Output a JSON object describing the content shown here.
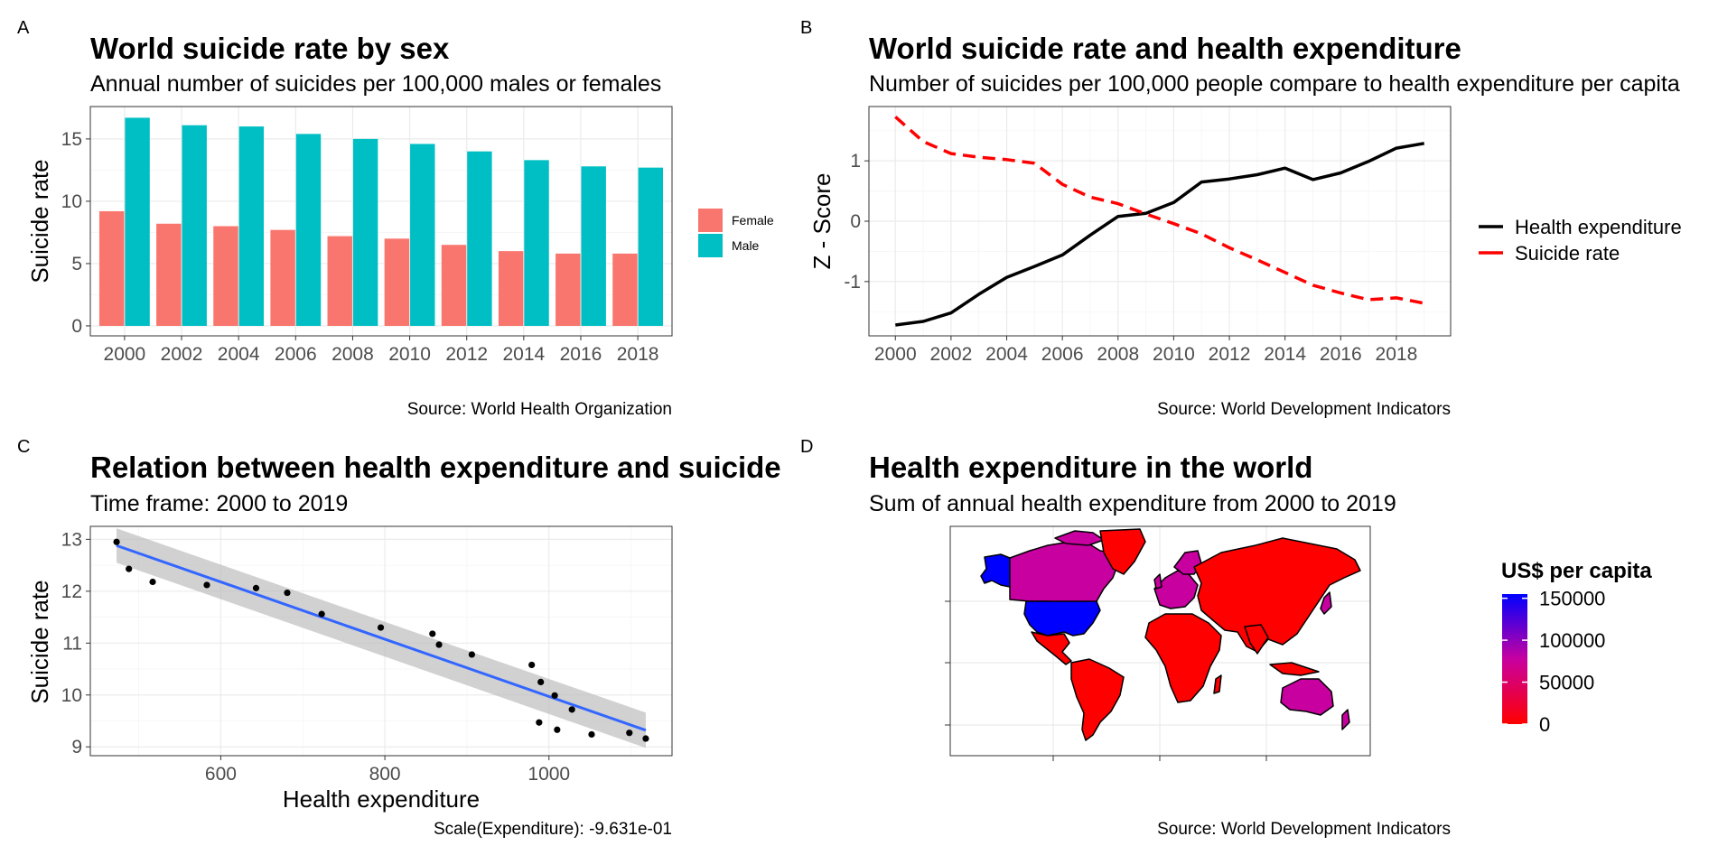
{
  "colors": {
    "female": "#F8766D",
    "male": "#00BFC4",
    "health": "#000000",
    "suicide": "#FF0000",
    "smooth": "#3366FF",
    "ribbon": "#BEBEBE",
    "grad_high": "#0000FF",
    "grad_mid": "#C800A0",
    "grad_low": "#FF0000"
  },
  "panels": [
    {
      "tag": "A",
      "title": "World suicide rate by sex",
      "subtitle": "Annual number of suicides per 100,000 males or females",
      "caption": "Source: World Health Organization"
    },
    {
      "tag": "B",
      "title": "World suicide rate and health expenditure",
      "subtitle": "Number of suicides per 100,000 people compare to health expenditure per capita",
      "caption": "Source: World Development Indicators"
    },
    {
      "tag": "C",
      "title": "Relation between health expenditure and suicide",
      "subtitle": "Time frame: 2000 to 2019",
      "caption": "Scale(Expenditure): -9.631e-01"
    },
    {
      "tag": "D",
      "title": "Health expenditure in the world",
      "subtitle": "Sum of annual health expenditure from 2000 to 2019",
      "caption": "Source: World Development Indicators"
    }
  ],
  "chart_data": [
    {
      "type": "bar",
      "title": "World suicide rate by sex",
      "subtitle": "Annual number of suicides per 100,000 males or females",
      "categories": [
        "2000",
        "2002",
        "2004",
        "2006",
        "2008",
        "2010",
        "2012",
        "2014",
        "2016",
        "2018"
      ],
      "series": [
        {
          "name": "Female",
          "values": [
            9.2,
            8.2,
            8.0,
            7.7,
            7.2,
            7.0,
            6.5,
            6.0,
            5.8,
            5.8
          ]
        },
        {
          "name": "Male",
          "values": [
            16.7,
            16.1,
            16.0,
            15.4,
            15.0,
            14.6,
            14.0,
            13.3,
            12.8,
            12.7
          ]
        }
      ],
      "xlabel": "",
      "ylabel": "Suicide rate",
      "yticks": [
        "0",
        "5",
        "10",
        "15"
      ],
      "ylim": [
        -0.8,
        17.6
      ],
      "legend": "right",
      "grid": true
    },
    {
      "type": "line",
      "title": "World suicide rate and health expenditure",
      "x": [
        2000,
        2001,
        2002,
        2003,
        2004,
        2005,
        2006,
        2007,
        2008,
        2009,
        2010,
        2011,
        2012,
        2013,
        2014,
        2015,
        2016,
        2017,
        2018,
        2019
      ],
      "series": [
        {
          "name": "Health expenditure",
          "style": "solid",
          "values": [
            -1.72,
            -1.66,
            -1.52,
            -1.21,
            -0.93,
            -0.75,
            -0.56,
            -0.23,
            0.08,
            0.13,
            0.31,
            0.65,
            0.7,
            0.77,
            0.88,
            0.69,
            0.8,
            0.99,
            1.21,
            1.29
          ]
        },
        {
          "name": "Suicide rate",
          "style": "dashed",
          "values": [
            1.73,
            1.32,
            1.12,
            1.06,
            1.02,
            0.96,
            0.61,
            0.4,
            0.29,
            0.12,
            -0.04,
            -0.21,
            -0.44,
            -0.64,
            -0.85,
            -1.06,
            -1.19,
            -1.3,
            -1.27,
            -1.36
          ]
        }
      ],
      "xticks": [
        "2000",
        "2002",
        "2004",
        "2006",
        "2008",
        "2010",
        "2012",
        "2014",
        "2016",
        "2018"
      ],
      "yticks": [
        "-1",
        "0",
        "1"
      ],
      "xlabel": "",
      "ylabel": "Z - Score",
      "xlim": [
        1999.05,
        2019.95
      ],
      "ylim": [
        -1.9,
        1.9
      ],
      "legend": "right",
      "grid": true
    },
    {
      "type": "scatter",
      "title": "Relation between health expenditure and suicide",
      "points": [
        [
          473,
          12.95
        ],
        [
          488,
          12.43
        ],
        [
          517,
          12.18
        ],
        [
          583,
          12.12
        ],
        [
          643,
          12.06
        ],
        [
          681,
          11.97
        ],
        [
          723,
          11.56
        ],
        [
          795,
          11.3
        ],
        [
          858,
          11.18
        ],
        [
          866,
          10.97
        ],
        [
          906,
          10.78
        ],
        [
          979,
          10.58
        ],
        [
          990,
          10.25
        ],
        [
          1007,
          9.99
        ],
        [
          988,
          9.47
        ],
        [
          1010,
          9.33
        ],
        [
          1028,
          9.72
        ],
        [
          1052,
          9.24
        ],
        [
          1098,
          9.27
        ],
        [
          1118,
          9.16
        ]
      ],
      "fit": {
        "x0": 473,
        "y0": 12.88,
        "x1": 1118,
        "y1": 9.32,
        "se_low0": 12.55,
        "se_high0": 13.21,
        "se_low1": 8.98,
        "se_high1": 9.66
      },
      "xlabel": "Health expenditure",
      "ylabel": "Suicide rate",
      "xticks": [
        "600",
        "800",
        "1000"
      ],
      "yticks": [
        "9",
        "10",
        "11",
        "12",
        "13"
      ],
      "xlim": [
        441,
        1150
      ],
      "ylim": [
        8.83,
        13.25
      ],
      "grid": true
    },
    {
      "type": "map",
      "title": "Health expenditure in the world",
      "legend_title": "US$ per capita",
      "legend_ticks": [
        "0",
        "50000",
        "100000",
        "150000"
      ],
      "scale_max": 155000,
      "regions": [
        {
          "name": "United States",
          "value": 155000
        },
        {
          "name": "Alaska",
          "value": 155000
        },
        {
          "name": "Canada",
          "value": 90000
        },
        {
          "name": "Western Europe",
          "value": 90000
        },
        {
          "name": "Australia",
          "value": 75000
        },
        {
          "name": "Japan",
          "value": 60000
        },
        {
          "name": "Rest of world",
          "value": 4000
        }
      ]
    }
  ]
}
